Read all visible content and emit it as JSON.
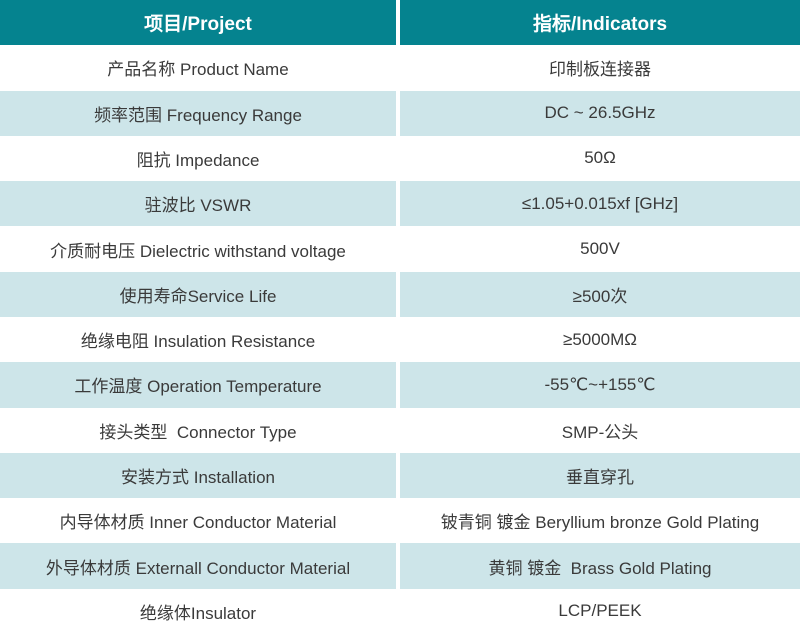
{
  "table": {
    "colors": {
      "header_bg": "#05838f",
      "header_text": "#ffffff",
      "row_alt_bg": "#cde5e9",
      "row_bg": "#ffffff",
      "text": "#3a3a3a"
    },
    "header": {
      "project": "项目/Project",
      "indicators": "指标/Indicators"
    },
    "rows": [
      {
        "project": "产品名称 Product Name",
        "indicator": "印制板连接器"
      },
      {
        "project": "频率范围 Frequency Range",
        "indicator": "DC ~ 26.5GHz"
      },
      {
        "project": "阻抗 Impedance",
        "indicator": "50Ω"
      },
      {
        "project": "驻波比 VSWR",
        "indicator": "≤1.05+0.015xf [GHz]"
      },
      {
        "project": "介质耐电压 Dielectric withstand voltage",
        "indicator": "500V"
      },
      {
        "project": "使用寿命Service Life",
        "indicator": "≥500次"
      },
      {
        "project": "绝缘电阻 Insulation Resistance",
        "indicator": "≥5000MΩ"
      },
      {
        "project": "工作温度 Operation Temperature",
        "indicator": "-55℃~+155℃"
      },
      {
        "project": "接头类型  Connector Type",
        "indicator": "SMP-公头"
      },
      {
        "project": "安装方式 Installation",
        "indicator": "垂直穿孔"
      },
      {
        "project": "内导体材质 Inner Conductor Material",
        "indicator": "铍青铜 镀金 Beryllium bronze Gold Plating"
      },
      {
        "project": "外导体材质 Externall Conductor Material",
        "indicator": "黄铜 镀金  Brass Gold Plating"
      },
      {
        "project": "绝缘体Insulator",
        "indicator": "LCP/PEEK"
      }
    ]
  }
}
